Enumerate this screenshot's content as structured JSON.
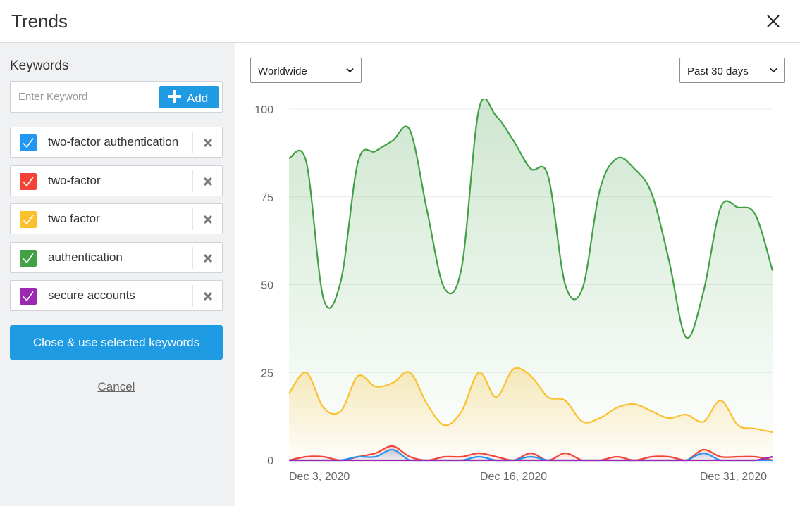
{
  "dialog": {
    "title": "Trends"
  },
  "sidebar": {
    "heading": "Keywords",
    "input": {
      "placeholder": "Enter Keyword",
      "value": ""
    },
    "add_label": "Add",
    "keywords": [
      {
        "label": "two-factor authentication",
        "color": "#2196f3",
        "checked": true
      },
      {
        "label": "two-factor",
        "color": "#f44336",
        "checked": true
      },
      {
        "label": "two factor",
        "color": "#fbc02d",
        "checked": true
      },
      {
        "label": "authentication",
        "color": "#43a047",
        "checked": true
      },
      {
        "label": "secure accounts",
        "color": "#9c27b0",
        "checked": true
      }
    ],
    "primary_button": "Close & use selected keywords",
    "cancel": "Cancel"
  },
  "filters": {
    "region": "Worldwide",
    "period": "Past 30 days"
  },
  "chart_data": {
    "type": "area",
    "title": "",
    "xlabel": "",
    "ylabel": "",
    "ylim": [
      0,
      100
    ],
    "yticks": [
      0,
      25,
      50,
      75,
      100
    ],
    "xtick_labels": [
      {
        "index": 0,
        "label": "Dec 3, 2020"
      },
      {
        "index": 13,
        "label": "Dec 16, 2020"
      },
      {
        "index": 28,
        "label": "Dec 31, 2020"
      }
    ],
    "grid": true,
    "legend": "none",
    "series": [
      {
        "color": "#43a047",
        "values": [
          86,
          85,
          46,
          51,
          85,
          88,
          91,
          94,
          71,
          49,
          55,
          100,
          98,
          91,
          83,
          81,
          50,
          49,
          77,
          86,
          83,
          76,
          57,
          35,
          48,
          72,
          72,
          70,
          54
        ]
      },
      {
        "color": "#fbc02d",
        "values": [
          19,
          25,
          15,
          14,
          24,
          21,
          22,
          25,
          16,
          10,
          14,
          25,
          18,
          26,
          24,
          18,
          17,
          11,
          12,
          15,
          16,
          14,
          12,
          13,
          11,
          17,
          10,
          9,
          8
        ]
      },
      {
        "color": "#f44336",
        "values": [
          0,
          1,
          1,
          0,
          1,
          2,
          4,
          1,
          0,
          1,
          1,
          2,
          1,
          0,
          2,
          0,
          2,
          0,
          0,
          1,
          0,
          1,
          1,
          0,
          3,
          1,
          1,
          1,
          0
        ]
      },
      {
        "color": "#2196f3",
        "values": [
          0,
          0,
          0,
          0,
          1,
          1,
          3,
          0,
          0,
          0,
          0,
          1,
          0,
          0,
          1,
          0,
          0,
          0,
          0,
          0,
          0,
          0,
          0,
          0,
          2,
          0,
          0,
          0,
          0
        ]
      },
      {
        "color": "#9c27b0",
        "values": [
          0,
          0,
          0,
          0,
          0,
          0,
          0,
          0,
          0,
          0,
          0,
          0,
          0,
          0,
          0,
          0,
          0,
          0,
          0,
          0,
          0,
          0,
          0,
          0,
          0,
          0,
          0,
          0,
          1
        ]
      }
    ]
  }
}
